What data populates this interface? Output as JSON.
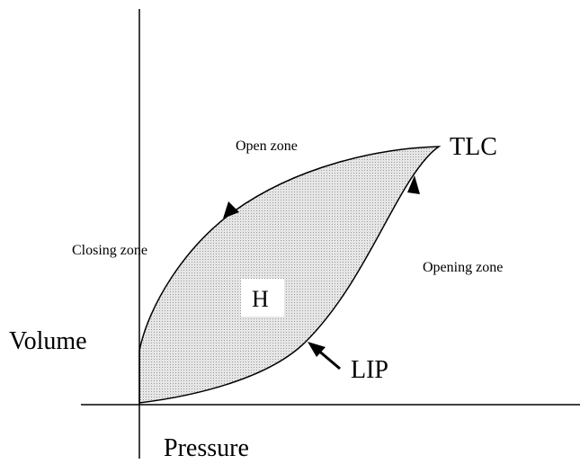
{
  "labels": {
    "open_zone": "Open zone",
    "tlc": "TLC",
    "closing_zone": "Closing zone",
    "opening_zone": "Opening zone",
    "h": "H",
    "volume": "Volume",
    "lip": "LIP",
    "pressure": "Pressure"
  }
}
